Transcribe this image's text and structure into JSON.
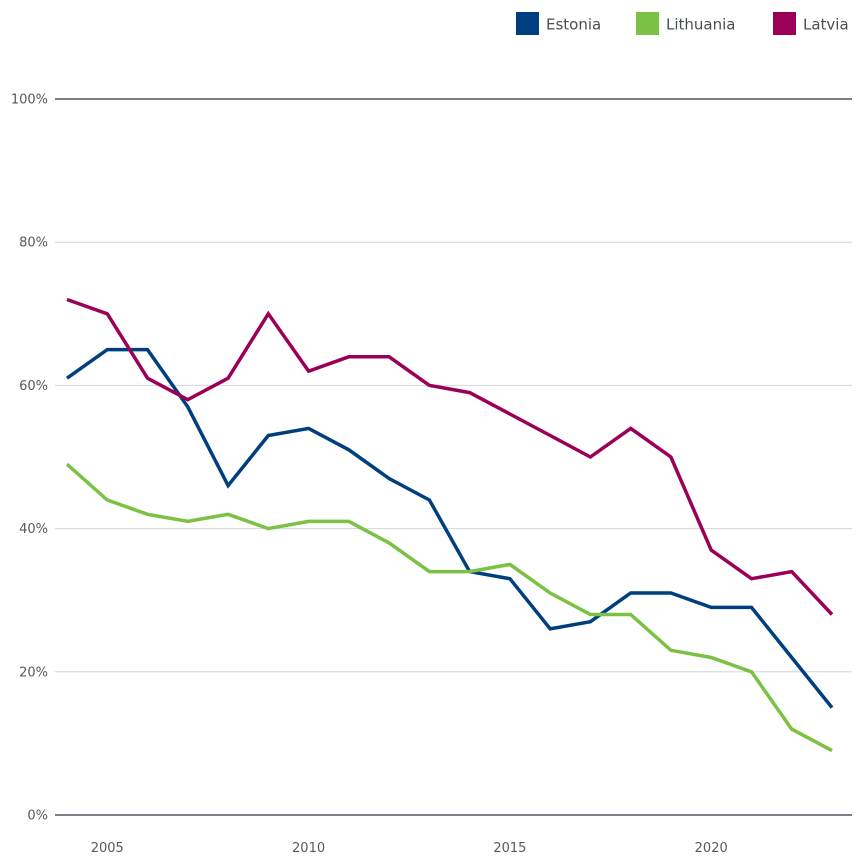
{
  "chart_data": {
    "type": "line",
    "title": "",
    "xlabel": "",
    "ylabel": "",
    "x": [
      2004,
      2005,
      2006,
      2007,
      2008,
      2009,
      2010,
      2011,
      2012,
      2013,
      2014,
      2015,
      2016,
      2017,
      2018,
      2019,
      2020,
      2021,
      2022,
      2023
    ],
    "xlim": [
      2003.8,
      2023.6
    ],
    "ylim": [
      0,
      100
    ],
    "x_ticks": [
      2005,
      2010,
      2015,
      2020
    ],
    "x_tick_labels": [
      "2005",
      "2010",
      "2015",
      "2020"
    ],
    "y_ticks": [
      0,
      20,
      40,
      60,
      80,
      100
    ],
    "y_tick_labels": [
      "0%",
      "20%",
      "40%",
      "60%",
      "80%",
      "100%"
    ],
    "grid": true,
    "legend_position": "top-right",
    "series": [
      {
        "name": "Estonia",
        "color": "#003F7F",
        "values": [
          61,
          65,
          65,
          57,
          46,
          53,
          54,
          51,
          47,
          44,
          34,
          33,
          26,
          27,
          31,
          31,
          29,
          29,
          22,
          15
        ]
      },
      {
        "name": "Lithuania",
        "color": "#7BC143",
        "values": [
          49,
          44,
          42,
          41,
          42,
          40,
          41,
          41,
          38,
          34,
          34,
          35,
          31,
          28,
          28,
          23,
          22,
          20,
          12,
          9
        ]
      },
      {
        "name": "Latvia",
        "color": "#9B0058",
        "values": [
          72,
          70,
          61,
          58,
          61,
          70,
          62,
          64,
          64,
          60,
          59,
          56,
          53,
          50,
          54,
          50,
          37,
          33,
          34,
          28
        ]
      }
    ]
  }
}
